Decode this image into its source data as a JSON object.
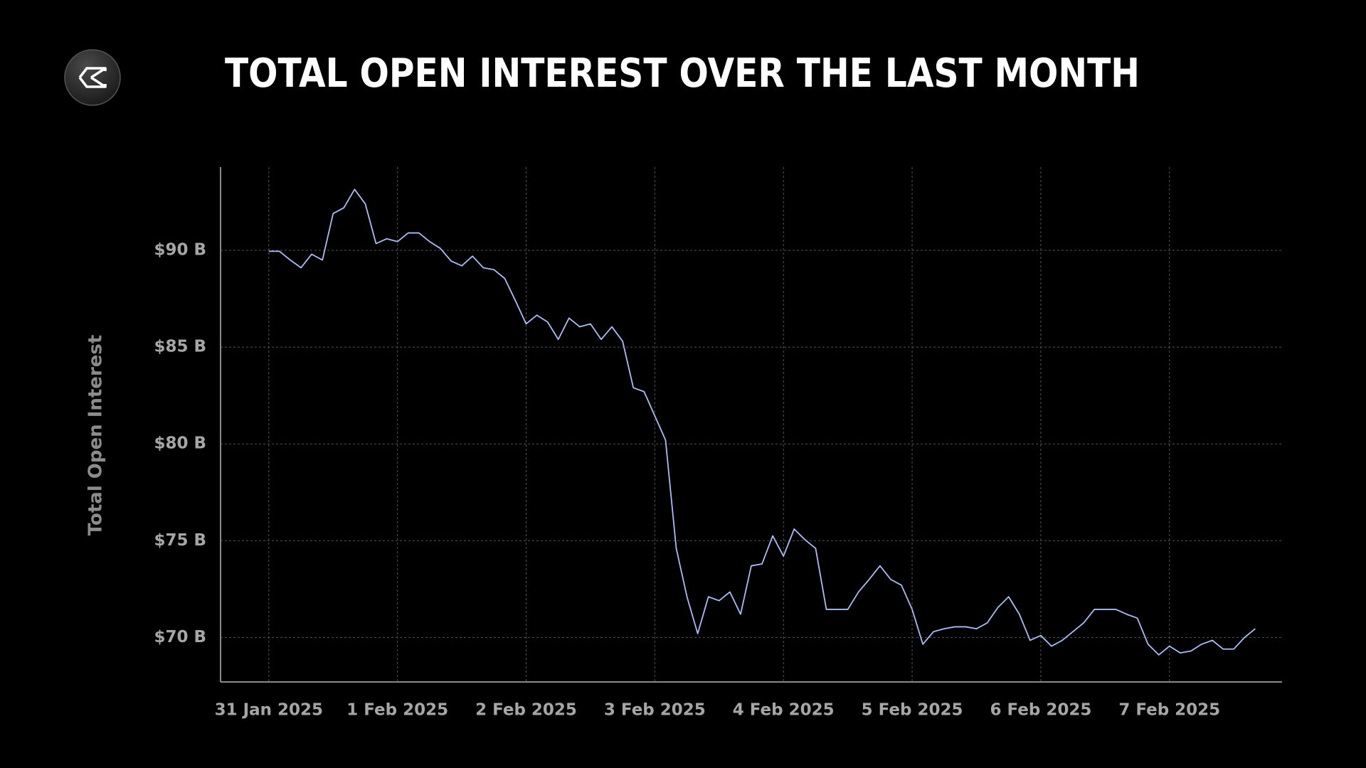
{
  "chart_data": {
    "type": "line",
    "title": "TOTAL OPEN INTEREST OVER THE LAST MONTH",
    "y_label": "Total Open Interest",
    "color": "#a9bdf5",
    "grid": true,
    "xlim": [
      -9,
      189
    ],
    "xticks": [
      {
        "value": 0,
        "label": "31 Jan 2025"
      },
      {
        "value": 24,
        "label": "1 Feb 2025"
      },
      {
        "value": 48,
        "label": "2 Feb 2025"
      },
      {
        "value": 72,
        "label": "3 Feb 2025"
      },
      {
        "value": 96,
        "label": "4 Feb 2025"
      },
      {
        "value": 120,
        "label": "5 Feb 2025"
      },
      {
        "value": 144,
        "label": "6 Feb 2025"
      },
      {
        "value": 168,
        "label": "7 Feb 2025"
      }
    ],
    "ylim": [
      67.7,
      94.3
    ],
    "yticks": [
      {
        "value": 70,
        "label": "$70 B"
      },
      {
        "value": 75,
        "label": "$75 B"
      },
      {
        "value": 80,
        "label": "$80 B"
      },
      {
        "value": 85,
        "label": "$85 B"
      },
      {
        "value": 90,
        "label": "$90 B"
      }
    ],
    "x": [
      0,
      2,
      4,
      6,
      8,
      10,
      12,
      14,
      16,
      18,
      20,
      22,
      24,
      26,
      28,
      30,
      32,
      34,
      36,
      38,
      40,
      42,
      44,
      46,
      48,
      50,
      52,
      54,
      56,
      58,
      60,
      62,
      64,
      66,
      68,
      70,
      72,
      74,
      76,
      78,
      80,
      82,
      84,
      86,
      88,
      90,
      92,
      94,
      96,
      98,
      100,
      102,
      104,
      106,
      108,
      110,
      112,
      114,
      116,
      118,
      120,
      122,
      124,
      126,
      128,
      130,
      132,
      134,
      136,
      138,
      140,
      142,
      144,
      146,
      148,
      150,
      152,
      154,
      156,
      158,
      160,
      162,
      164,
      166,
      168,
      170,
      172,
      174,
      176,
      178,
      180,
      182,
      184
    ],
    "values": [
      89.95,
      89.95,
      89.5,
      89.1,
      89.8,
      89.5,
      91.9,
      92.2,
      93.15,
      92.4,
      90.35,
      90.6,
      90.45,
      90.9,
      90.9,
      90.45,
      90.1,
      89.45,
      89.2,
      89.7,
      89.1,
      89.0,
      88.55,
      87.4,
      86.2,
      86.65,
      86.3,
      85.4,
      86.5,
      86.05,
      86.2,
      85.4,
      86.05,
      85.3,
      82.9,
      82.7,
      81.45,
      80.2,
      74.6,
      72.1,
      70.2,
      72.1,
      71.9,
      72.35,
      71.2,
      73.7,
      73.8,
      75.25,
      74.2,
      75.6,
      75.05,
      74.6,
      71.45,
      71.45,
      71.45,
      72.35,
      73.0,
      73.7,
      73.0,
      72.7,
      71.45,
      69.65,
      70.3,
      70.45,
      70.55,
      70.55,
      70.45,
      70.75,
      71.55,
      72.1,
      71.2,
      69.85,
      70.1,
      69.55,
      69.85,
      70.3,
      70.75,
      71.45,
      71.45,
      71.45,
      71.2,
      71.0,
      69.65,
      69.1,
      69.55,
      69.2,
      69.3,
      69.65,
      69.85,
      69.4,
      69.4,
      70.0,
      70.45
    ]
  }
}
